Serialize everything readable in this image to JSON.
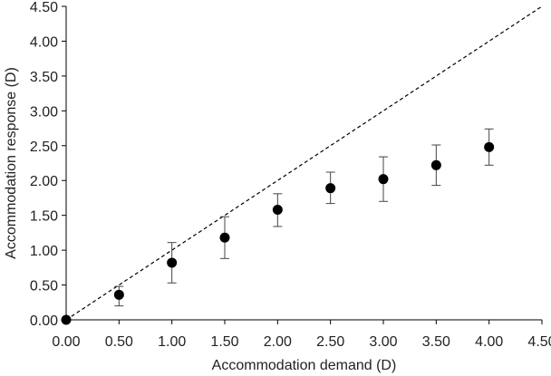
{
  "chart_data": {
    "type": "scatter",
    "title": "",
    "xlabel": "Accommodation demand (D)",
    "ylabel": "Accommodation response (D)",
    "xlim": [
      0,
      4.5
    ],
    "ylim": [
      0,
      4.5
    ],
    "x_ticks": [
      "0.00",
      "0.50",
      "1.00",
      "1.50",
      "2.00",
      "2.50",
      "3.00",
      "3.50",
      "4.00",
      "4.50"
    ],
    "y_ticks": [
      "0.00",
      "0.50",
      "1.00",
      "1.50",
      "2.00",
      "2.50",
      "3.00",
      "3.50",
      "4.00",
      "4.50"
    ],
    "grid": false,
    "legend": "none",
    "series": [
      {
        "x": [
          0.0,
          0.5,
          1.0,
          1.5,
          2.0,
          2.5,
          3.0,
          3.5,
          4.0
        ],
        "y": [
          0.0,
          0.36,
          0.82,
          1.18,
          1.58,
          1.89,
          2.02,
          2.22,
          2.48
        ],
        "err_low": [
          0.0,
          0.2,
          0.53,
          0.88,
          1.34,
          1.67,
          1.7,
          1.93,
          2.22
        ],
        "err_high": [
          0.0,
          0.48,
          1.11,
          1.48,
          1.81,
          2.12,
          2.34,
          2.51,
          2.74
        ]
      }
    ],
    "reference_line": {
      "style": "dashed",
      "x": [
        0,
        4.5
      ],
      "y": [
        0,
        4.5
      ]
    },
    "colors": {
      "marker": "#000000",
      "error_bar": "#444444",
      "axis": "#000000",
      "reference": "#000000"
    }
  }
}
